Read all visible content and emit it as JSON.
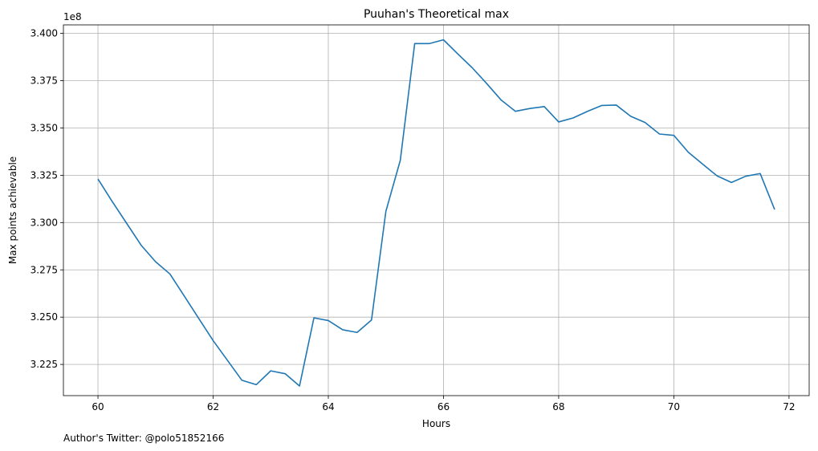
{
  "chart_data": {
    "type": "line",
    "title": "Puuhan's Theoretical max",
    "xlabel": "Hours",
    "ylabel": "Max points achievable",
    "y_offset_label": "1e8",
    "footer": "Author's Twitter: @polo51852166",
    "xlim": [
      59.4,
      72.35
    ],
    "ylim": [
      3.2085,
      3.4045
    ],
    "x_ticks": [
      60,
      62,
      64,
      66,
      68,
      70,
      72
    ],
    "x_tick_labels": [
      "60",
      "62",
      "64",
      "66",
      "68",
      "70",
      "72"
    ],
    "y_ticks": [
      3.225,
      3.25,
      3.275,
      3.3,
      3.325,
      3.35,
      3.375,
      3.4
    ],
    "y_tick_labels": [
      "3.225",
      "3.250",
      "3.275",
      "3.300",
      "3.325",
      "3.350",
      "3.375",
      "3.400"
    ],
    "grid": true,
    "line_color": "#1f77b4",
    "series": [
      {
        "x": [
          60,
          60.25,
          60.5,
          60.75,
          61,
          61.25,
          61.5,
          61.75,
          62,
          62.25,
          62.5,
          62.75,
          63,
          63.25,
          63.5,
          63.75,
          64,
          64.25,
          64.5,
          64.75,
          65,
          65.25,
          65.5,
          65.75,
          66,
          66.25,
          66.5,
          66.75,
          67,
          67.25,
          67.5,
          67.75,
          68,
          68.25,
          68.5,
          68.75,
          69,
          69.25,
          69.5,
          69.75,
          70,
          70.25,
          70.5,
          70.75,
          71,
          71.25,
          71.5,
          71.75
        ],
        "values": [
          3.323,
          3.311,
          3.2995,
          3.288,
          3.2793,
          3.2728,
          3.2611,
          3.2493,
          3.2376,
          3.2271,
          3.2166,
          3.2143,
          3.2216,
          3.2201,
          3.2136,
          3.2496,
          3.2482,
          3.2433,
          3.2419,
          3.2485,
          3.306,
          3.3329,
          3.3946,
          3.3946,
          3.3966,
          3.3891,
          3.3818,
          3.3735,
          3.3648,
          3.3588,
          3.3603,
          3.3613,
          3.3532,
          3.3553,
          3.3588,
          3.3619,
          3.3621,
          3.3562,
          3.3529,
          3.3468,
          3.3461,
          3.3372,
          3.3309,
          3.3247,
          3.3212,
          3.3245,
          3.3259,
          3.3069
        ]
      }
    ]
  }
}
